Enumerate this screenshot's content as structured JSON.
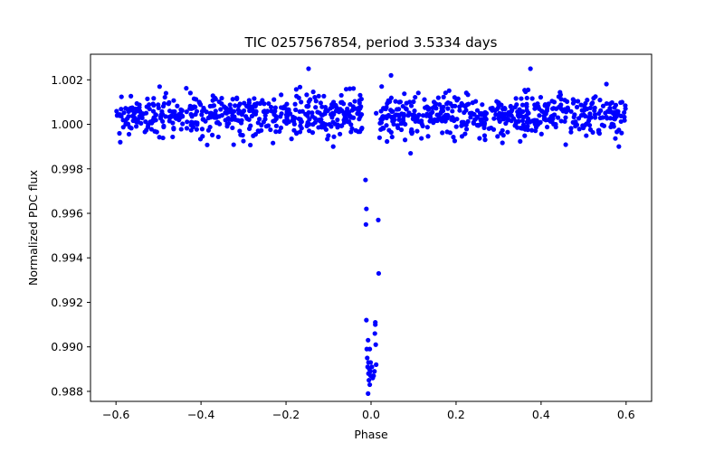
{
  "chart_data": {
    "type": "scatter",
    "title": "TIC 0257567854, period 3.5334 days",
    "xlabel": "Phase",
    "ylabel": "Normalized PDC flux",
    "xlim": [
      -0.66,
      0.66
    ],
    "ylim": [
      0.98755,
      1.00315
    ],
    "xticks": [
      -0.6,
      -0.4,
      -0.2,
      0.0,
      0.2,
      0.4,
      0.6
    ],
    "xtick_labels": [
      "−0.6",
      "−0.4",
      "−0.2",
      "0.0",
      "0.2",
      "0.4",
      "0.6"
    ],
    "yticks": [
      0.988,
      0.99,
      0.992,
      0.994,
      0.996,
      0.998,
      1.0,
      1.002
    ],
    "ytick_labels": [
      "0.988",
      "0.990",
      "0.992",
      "0.994",
      "0.996",
      "0.998",
      "1.000",
      "1.002"
    ],
    "grid": false,
    "marker_color": "#0000ff",
    "transit_points": [
      {
        "x": -0.013,
        "y": 0.9975
      },
      {
        "x": -0.011,
        "y": 0.9962
      },
      {
        "x": -0.012,
        "y": 0.9955
      },
      {
        "x": -0.011,
        "y": 0.9912
      },
      {
        "x": -0.007,
        "y": 0.9903
      },
      {
        "x": -0.01,
        "y": 0.9899
      },
      {
        "x": -0.003,
        "y": 0.9899
      },
      {
        "x": -0.009,
        "y": 0.9895
      },
      {
        "x": -0.006,
        "y": 0.9893
      },
      {
        "x": -0.008,
        "y": 0.9891
      },
      {
        "x": -0.004,
        "y": 0.989
      },
      {
        "x": -0.002,
        "y": 0.9889
      },
      {
        "x": -0.001,
        "y": 0.9887
      },
      {
        "x": -0.005,
        "y": 0.9885
      },
      {
        "x": -0.003,
        "y": 0.9883
      },
      {
        "x": -0.007,
        "y": 0.9879
      },
      {
        "x": -0.001,
        "y": 0.9893
      },
      {
        "x": 0.002,
        "y": 0.9891
      },
      {
        "x": 0.006,
        "y": 0.9887
      },
      {
        "x": 0.004,
        "y": 0.9886
      },
      {
        "x": 0.008,
        "y": 0.9889
      },
      {
        "x": 0.011,
        "y": 0.9901
      },
      {
        "x": 0.009,
        "y": 0.9906
      },
      {
        "x": 0.01,
        "y": 0.991
      },
      {
        "x": 0.01,
        "y": 0.9911
      },
      {
        "x": 0.018,
        "y": 0.9933
      },
      {
        "x": 0.017,
        "y": 0.9957
      },
      {
        "x": 0.012,
        "y": 0.9892
      },
      {
        "x": 0.003,
        "y": 0.9887
      },
      {
        "x": -0.006,
        "y": 0.9888
      }
    ],
    "outlier_points": [
      {
        "x": -0.147,
        "y": 1.0025
      },
      {
        "x": 0.047,
        "y": 1.0022
      },
      {
        "x": 0.375,
        "y": 1.0025
      },
      {
        "x": 0.093,
        "y": 0.9987
      },
      {
        "x": -0.089,
        "y": 0.999
      },
      {
        "x": 0.583,
        "y": 0.999
      },
      {
        "x": -0.59,
        "y": 0.9992
      },
      {
        "x": 0.025,
        "y": 1.0017
      },
      {
        "x": -0.05,
        "y": 1.0016
      },
      {
        "x": 0.012,
        "y": 1.0005
      },
      {
        "x": -0.024,
        "y": 1.0008
      },
      {
        "x": 0.02,
        "y": 0.9994
      },
      {
        "x": 0.04,
        "y": 1.001
      },
      {
        "x": 0.08,
        "y": 0.9993
      }
    ],
    "baseline_points": {
      "count": 980,
      "x_range": [
        -0.6,
        0.6
      ],
      "gap_range": [
        -0.02,
        0.02
      ],
      "mean": 1.0004,
      "std": 0.00045,
      "min": 0.999,
      "max": 1.0019,
      "seed": 257567854
    }
  }
}
